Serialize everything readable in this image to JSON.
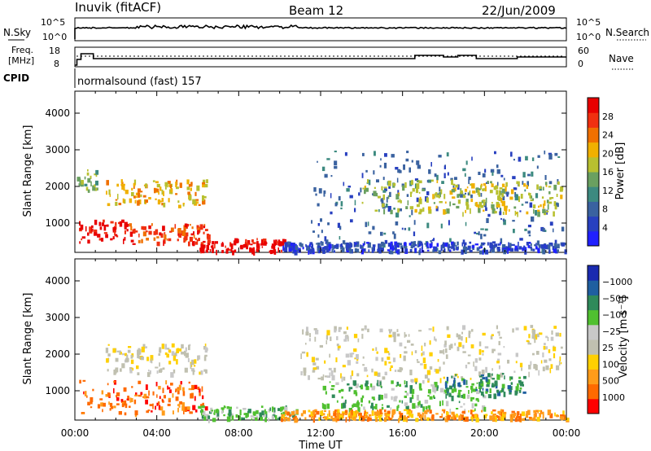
{
  "header": {
    "station": "Inuvik (fitACF)",
    "beam": "Beam 12",
    "date": "22/Jun/2009"
  },
  "strip1": {
    "left_label": "N.Sky",
    "right_label": "N.Search",
    "left_ticks": [
      "10^5",
      "10^0"
    ],
    "right_ticks": [
      "10^5",
      "10^0"
    ]
  },
  "strip2": {
    "left_label_top": "Freq.",
    "left_label_bottom": "[MHz]",
    "right_label": "Nave",
    "left_ticks": [
      "18",
      "8"
    ],
    "right_ticks": [
      "60",
      "0"
    ]
  },
  "cpid": {
    "label": "CPID",
    "text": "normalsound (fast) 157"
  },
  "colors": {
    "power": [
      "#2020ff",
      "#2840c0",
      "#3a62a0",
      "#3d8a80",
      "#6aa060",
      "#b8c030",
      "#f0b000",
      "#f07000",
      "#f03010",
      "#e80000"
    ],
    "velocity": [
      "#ff0000",
      "#ff6a00",
      "#ff9c1a",
      "#ffd000",
      "#c0c0b0",
      "#c8c8c8",
      "#50c030",
      "#2f8a5a",
      "#1f5fa0",
      "#1a2ab0"
    ]
  },
  "chart_data": [
    {
      "type": "heatmap",
      "name": "power",
      "xlabel": "",
      "ylabel": "Slant Range [km]",
      "x_ticks": [
        "00:00",
        "04:00",
        "08:00",
        "12:00",
        "16:00",
        "20:00",
        "00:00"
      ],
      "y_ticks": [
        1000,
        2000,
        3000,
        4000
      ],
      "ylim": [
        200,
        4600
      ],
      "colorbar": {
        "label": "Power [dB]",
        "ticks": [
          4,
          8,
          12,
          16,
          20,
          24,
          28
        ]
      },
      "regions": [
        {
          "x": [
            0.2,
            2.6
          ],
          "y": [
            500,
            1100
          ],
          "level": 9
        },
        {
          "x": [
            2.6,
            6.5
          ],
          "y": [
            450,
            1000
          ],
          "level": 8
        },
        {
          "x": [
            6.0,
            10.3
          ],
          "y": [
            250,
            600
          ],
          "level": 9
        },
        {
          "x": [
            1.5,
            6.4
          ],
          "y": [
            1500,
            2200
          ],
          "level": 6
        },
        {
          "x": [
            0.1,
            1.2
          ],
          "y": [
            1900,
            2500
          ],
          "level": 4
        },
        {
          "x": [
            11.5,
            23.8
          ],
          "y": [
            300,
            3000
          ],
          "level": 2
        },
        {
          "x": [
            14.0,
            23.7
          ],
          "y": [
            1300,
            2200
          ],
          "level": 5
        },
        {
          "x": [
            10.0,
            24.0
          ],
          "y": [
            250,
            500
          ],
          "level": 1
        }
      ]
    },
    {
      "type": "heatmap",
      "name": "velocity",
      "xlabel": "Time UT",
      "ylabel": "Slant Range [km]",
      "x_ticks": [
        "00:00",
        "04:00",
        "08:00",
        "12:00",
        "16:00",
        "20:00",
        "00:00"
      ],
      "y_ticks": [
        1000,
        2000,
        3000,
        4000
      ],
      "ylim": [
        200,
        4600
      ],
      "colorbar": {
        "label": "Velocity [m s⁻¹]",
        "ticks": [
          "1000",
          "500",
          "100",
          "25",
          "−25",
          "−100",
          "−500",
          "−1000"
        ]
      },
      "regions": [
        {
          "x": [
            0.2,
            6.4
          ],
          "y": [
            400,
            1300
          ],
          "level": 1
        },
        {
          "x": [
            6.0,
            10.8
          ],
          "y": [
            250,
            600
          ],
          "level": 6
        },
        {
          "x": [
            1.5,
            6.4
          ],
          "y": [
            1500,
            2300
          ],
          "level": 4
        },
        {
          "x": [
            11.0,
            23.8
          ],
          "y": [
            1300,
            2800
          ],
          "level": 4
        },
        {
          "x": [
            12.0,
            20.0
          ],
          "y": [
            500,
            1300
          ],
          "level": 6
        },
        {
          "x": [
            18.0,
            22.0
          ],
          "y": [
            900,
            1500
          ],
          "level": 7
        },
        {
          "x": [
            10.0,
            24.0
          ],
          "y": [
            250,
            500
          ],
          "level": 2
        }
      ]
    }
  ]
}
